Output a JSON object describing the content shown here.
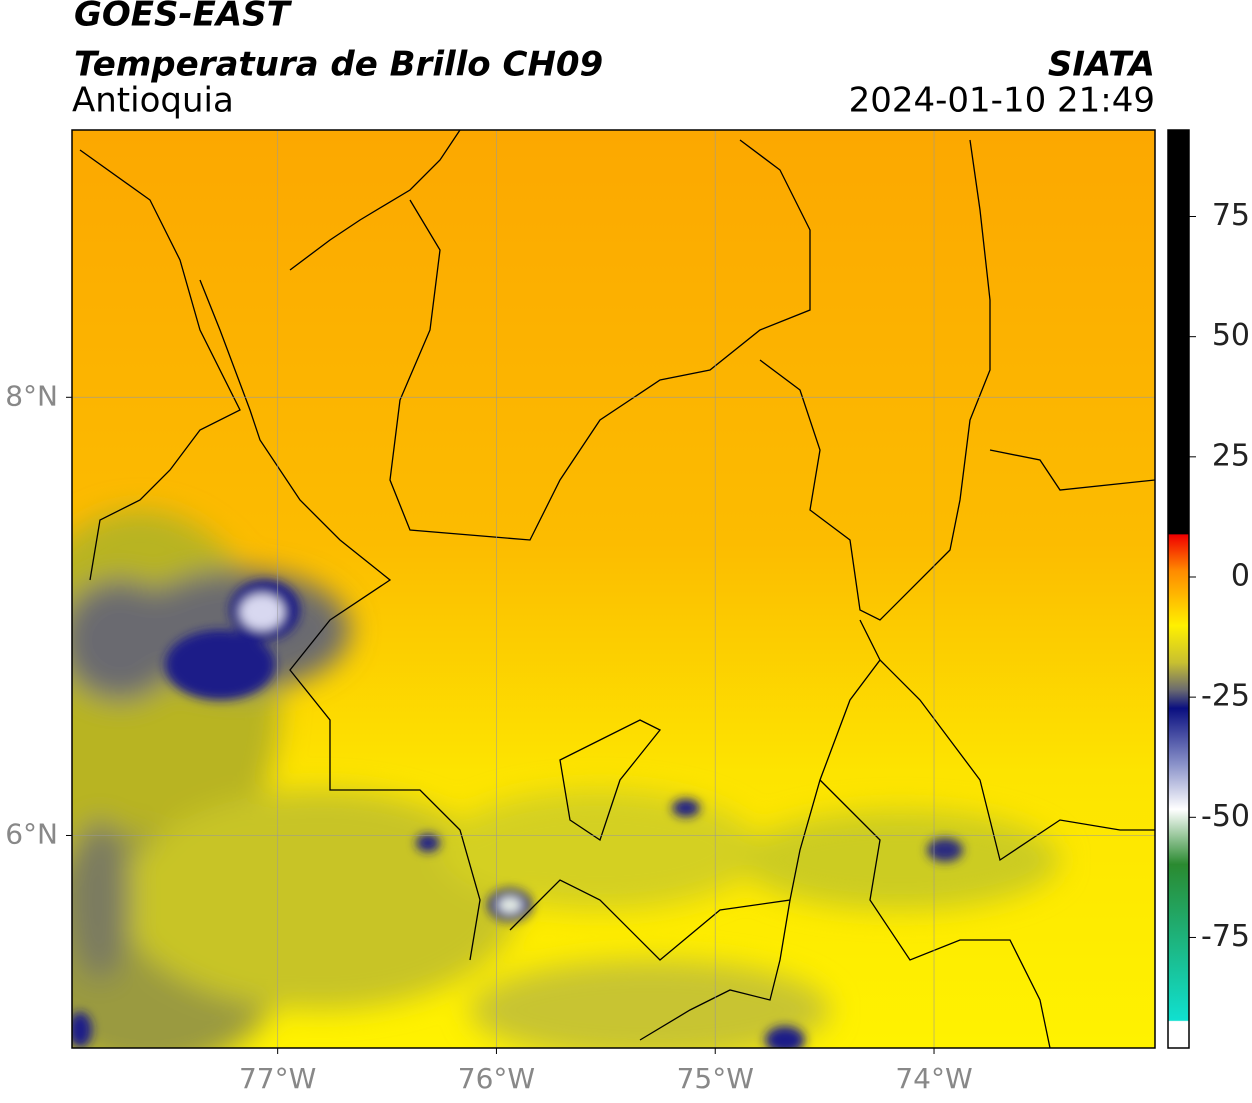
{
  "header": {
    "title": "GOES-EAST",
    "subtitle": "Temperatura de Brillo CH09",
    "region": "Antioquia",
    "source": "SIATA",
    "datetime": "2024-01-10 21:49"
  },
  "map": {
    "lon_lim": [
      -77.94,
      -72.99
    ],
    "lat_lim": [
      5.03,
      9.22
    ],
    "lon_ticks": [
      {
        "value": -77,
        "label": "77°W"
      },
      {
        "value": -76,
        "label": "76°W"
      },
      {
        "value": -75,
        "label": "75°W"
      },
      {
        "value": -74,
        "label": "74°W"
      }
    ],
    "lat_ticks": [
      {
        "value": 8,
        "label": "8°N"
      },
      {
        "value": 6,
        "label": "6°N"
      }
    ]
  },
  "colorbar": {
    "lim": [
      -98,
      93
    ],
    "ticks": [
      75,
      50,
      25,
      0,
      -25,
      -50,
      -75
    ]
  }
}
